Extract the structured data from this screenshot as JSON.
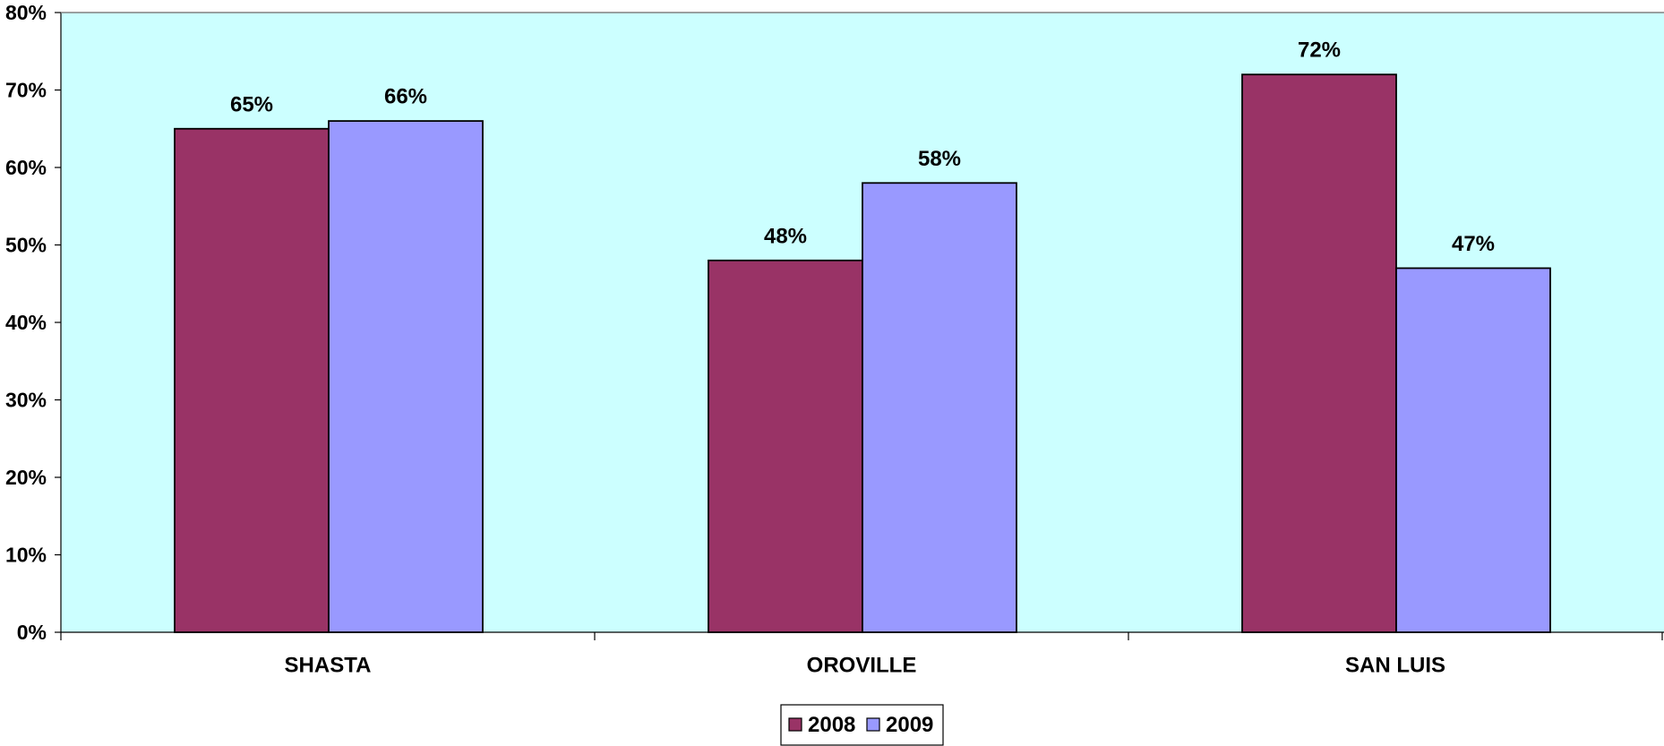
{
  "chart_data": {
    "type": "bar",
    "title": "",
    "xlabel": "",
    "ylabel": "",
    "categories": [
      "SHASTA",
      "OROVILLE",
      "SAN LUIS"
    ],
    "series": [
      {
        "name": "2008",
        "values": [
          65,
          48,
          72
        ],
        "labels": [
          "65%",
          "48%",
          "72%"
        ],
        "color": "#993366"
      },
      {
        "name": "2009",
        "values": [
          66,
          58,
          47
        ],
        "labels": [
          "66%",
          "58%",
          "47%"
        ],
        "color": "#9999ff"
      }
    ],
    "ylim": [
      0,
      80
    ],
    "y_ticks": [
      0,
      10,
      20,
      30,
      40,
      50,
      60,
      70,
      80
    ],
    "y_tick_labels": [
      "0%",
      "10%",
      "20%",
      "30%",
      "40%",
      "50%",
      "60%",
      "70%",
      "80%"
    ],
    "grid": false,
    "plot_background": "#ccffff",
    "legend_position": "bottom-center"
  }
}
